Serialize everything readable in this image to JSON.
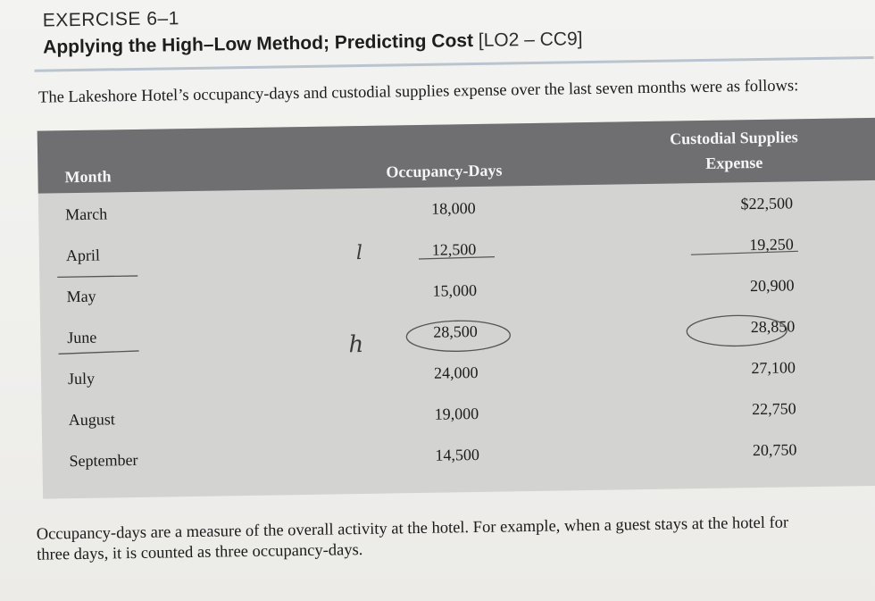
{
  "header": {
    "exercise": "EXERCISE 6–1",
    "title": "Applying the High–Low Method; Predicting Cost",
    "codes": "[LO2 – CC9]"
  },
  "intro": "The Lakeshore Hotel’s occupancy-days and custodial supplies expense over the last seven months were as follows:",
  "table": {
    "columns": [
      "Month",
      "Occupancy-Days",
      "Custodial Supplies Expense"
    ],
    "expense_header_line1": "Custodial Supplies",
    "expense_header_line2": "Expense",
    "rows": [
      {
        "month": "March",
        "occupancy": "18,000",
        "expense": "$22,500"
      },
      {
        "month": "April",
        "occupancy": "12,500",
        "expense": "19,250"
      },
      {
        "month": "May",
        "occupancy": "15,000",
        "expense": "20,900"
      },
      {
        "month": "June",
        "occupancy": "28,500",
        "expense": "28,850"
      },
      {
        "month": "July",
        "occupancy": "24,000",
        "expense": "27,100"
      },
      {
        "month": "August",
        "occupancy": "19,000",
        "expense": "22,750"
      },
      {
        "month": "September",
        "occupancy": "14,500",
        "expense": "20,750"
      }
    ]
  },
  "annotations": {
    "low_mark": "l",
    "high_mark": "h"
  },
  "footnote_line1": "Occupancy-days are a measure of the overall activity at the hotel. For example, when a guest stays at the hotel for",
  "footnote_line2": "three days, it is counted as three occupancy-days.",
  "colors": {
    "header_band": "#6f6f72",
    "table_body": "#d3d3d2",
    "page": "#efefec"
  }
}
